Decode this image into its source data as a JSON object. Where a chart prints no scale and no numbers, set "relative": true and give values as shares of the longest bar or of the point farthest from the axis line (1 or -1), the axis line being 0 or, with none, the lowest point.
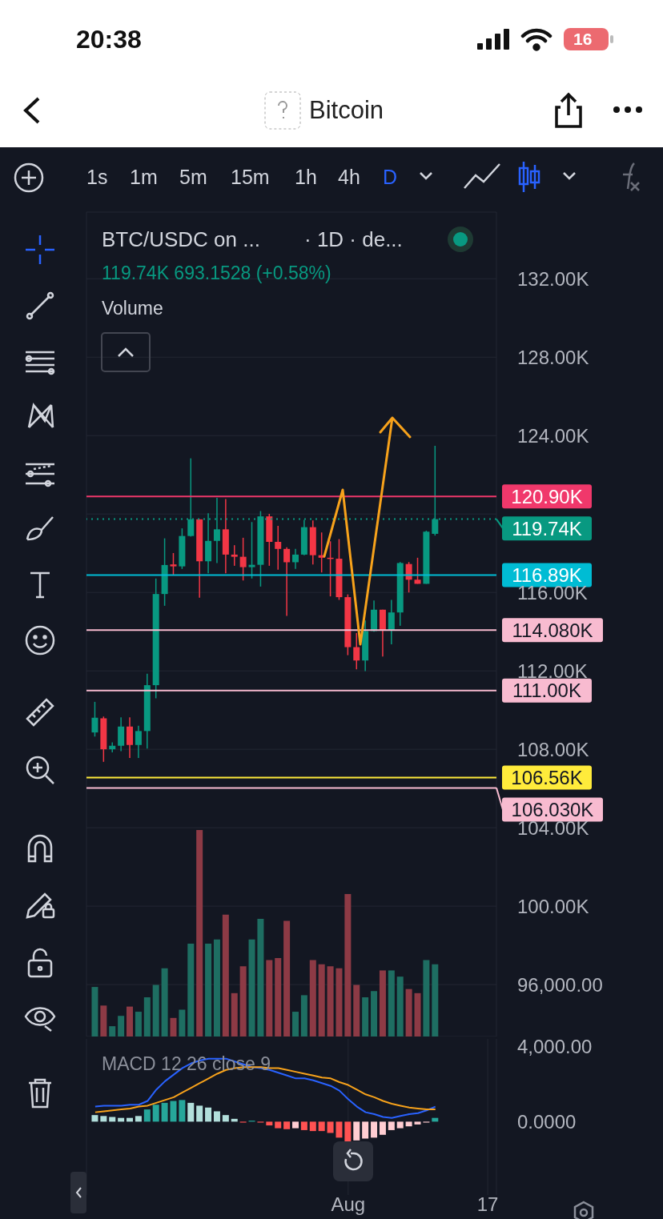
{
  "chart_data": [
    {
      "type": "candlestick",
      "title": "Bitcoin",
      "subtitle": "BTC/USDC on ...",
      "annotations": [
        "20:38",
        "16",
        "1s",
        "1m",
        "5m",
        "15m",
        "1h",
        "4h",
        "D",
        "· 1D · de...",
        "119.74K  693.1528 (+0.58%)",
        "Volume"
      ],
      "x": [
        "--07-03",
        "--07-04",
        "--07-05",
        "--07-06",
        "--07-07",
        "--07-08",
        "--07-09",
        "--07-10",
        "--07-11",
        "--07-12",
        "--07-13",
        "--07-14",
        "--07-15",
        "--07-16",
        "--07-17",
        "--07-18",
        "--07-19",
        "--07-20",
        "--07-21",
        "--07-22",
        "--07-23",
        "--07-24",
        "--07-25",
        "--07-26",
        "--07-27",
        "--07-28",
        "--07-29",
        "--07-30",
        "--07-31",
        "--08-01",
        "--08-02",
        "--08-03",
        "--08-04",
        "--08-05",
        "--08-06",
        "--08-07",
        "--08-08",
        "--08-09",
        "--08-10",
        "--08-11"
      ],
      "ohlc": [
        [
          108860,
          110420,
          108650,
          109610
        ],
        [
          109580,
          109670,
          107360,
          108000
        ],
        [
          108000,
          108350,
          107840,
          108180
        ],
        [
          108180,
          109630,
          107900,
          109160
        ],
        [
          109160,
          109630,
          107560,
          108220
        ],
        [
          108220,
          109200,
          107560,
          108930
        ],
        [
          108930,
          111850,
          108040,
          111270
        ],
        [
          111270,
          116710,
          110600,
          115920
        ],
        [
          115920,
          118760,
          115320,
          117400
        ],
        [
          117430,
          118010,
          116880,
          117330
        ],
        [
          117330,
          119270,
          117200,
          118880
        ],
        [
          118880,
          122840,
          118850,
          119730
        ],
        [
          119730,
          119730,
          115730,
          117590
        ],
        [
          117590,
          120040,
          116980,
          118630
        ],
        [
          118630,
          120830,
          117500,
          119220
        ],
        [
          119220,
          120760,
          116980,
          117930
        ],
        [
          117930,
          118410,
          117360,
          117820
        ],
        [
          117820,
          118790,
          116610,
          117290
        ],
        [
          117290,
          119590,
          116710,
          117410
        ],
        [
          117410,
          120150,
          116300,
          119880
        ],
        [
          119880,
          120010,
          117360,
          118580
        ],
        [
          118580,
          119400,
          117160,
          118220
        ],
        [
          118220,
          118300,
          114800,
          117540
        ],
        [
          117540,
          118220,
          117200,
          117930
        ],
        [
          117930,
          119700,
          117900,
          119330
        ],
        [
          119330,
          119670,
          117430,
          117900
        ],
        [
          117900,
          119060,
          117020,
          117770
        ],
        [
          117770,
          118610,
          115800,
          117720
        ],
        [
          117720,
          118720,
          115620,
          115760
        ],
        [
          115760,
          115900,
          112800,
          113210
        ],
        [
          113210,
          113930,
          112080,
          112530
        ],
        [
          112530,
          114570,
          111990,
          114030
        ],
        [
          114030,
          115590,
          114000,
          115120
        ],
        [
          115120,
          115120,
          112730,
          114050
        ],
        [
          114050,
          115620,
          113350,
          114980
        ],
        [
          114980,
          117550,
          114300,
          117500
        ],
        [
          117450,
          117550,
          116000,
          116650
        ],
        [
          116650,
          117770,
          116440,
          116440
        ],
        [
          116440,
          119150,
          116440,
          119100
        ],
        [
          118990,
          123480,
          118900,
          119740
        ]
      ],
      "colors": [
        "#089981",
        "#f23645",
        "#089981",
        "#089981",
        "#f23645",
        "#089981",
        "#089981",
        "#089981",
        "#089981",
        "#f23645",
        "#089981",
        "#089981",
        "#f23645",
        "#089981",
        "#089981",
        "#f23645",
        "#f23645",
        "#f23645",
        "#089981",
        "#089981",
        "#f23645",
        "#f23645",
        "#f23645",
        "#089981",
        "#089981",
        "#f23645",
        "#f23645",
        "#f23645",
        "#f23645",
        "#f23645",
        "#f23645",
        "#089981",
        "#089981",
        "#f23645",
        "#089981",
        "#089981",
        "#f23645",
        "#f23645",
        "#089981",
        "#089981"
      ],
      "xlim": [
        "--07-02",
        "--08-18"
      ],
      "xticks": [
        {
          "value": "--08-01",
          "label": null
        },
        {
          "value": "--08-17",
          "label": null
        }
      ],
      "ylim": [
        93350,
        135400
      ],
      "yticks": [
        {
          "value": 96000,
          "label": "96,000.00"
        },
        {
          "value": 100000,
          "label": "100.00K"
        },
        {
          "value": 104000,
          "label": "104.00K"
        },
        {
          "value": 108000,
          "label": "108.00K"
        },
        {
          "value": 112000,
          "label": "112.00K"
        },
        {
          "value": 116000,
          "label": "116.00K"
        },
        {
          "value": 120000,
          "label": null
        },
        {
          "value": 124000,
          "label": "124.00K"
        },
        {
          "value": 128000,
          "label": "128.00K"
        },
        {
          "value": 132000,
          "label": "132.00K"
        }
      ],
      "tick_labels": "y",
      "grid": true,
      "ref_lines": [
        {
          "axis": "y",
          "value": 120900,
          "label": "120.90K",
          "color": "#f0386b",
          "line_style": "solid"
        },
        {
          "axis": "y",
          "value": 119740,
          "label": "119.74K",
          "color": "#089981",
          "line_style": "dotted"
        },
        {
          "axis": "y",
          "value": 116890,
          "label": "116.89K",
          "color": "#00bcd4",
          "line_style": "solid"
        },
        {
          "axis": "y",
          "value": 114080,
          "label": "114.080K",
          "color": "#f8bbd0",
          "line_style": "solid"
        },
        {
          "axis": "y",
          "value": 111000,
          "label": "111.00K",
          "color": "#f8bbd0",
          "line_style": "solid"
        },
        {
          "axis": "y",
          "value": 106560,
          "label": "106.56K",
          "color": "#ffeb3b",
          "line_style": "solid"
        },
        {
          "axis": "y",
          "value": 106030,
          "label": "106.030K",
          "color": "#f8bbd0",
          "line_style": "solid"
        }
      ]
    },
    {
      "type": "bar",
      "relative": true,
      "tick_labels": false,
      "x": [
        "--07-03",
        "--07-04",
        "--07-05",
        "--07-06",
        "--07-07",
        "--07-08",
        "--07-09",
        "--07-10",
        "--07-11",
        "--07-12",
        "--07-13",
        "--07-14",
        "--07-15",
        "--07-16",
        "--07-17",
        "--07-18",
        "--07-19",
        "--07-20",
        "--07-21",
        "--07-22",
        "--07-23",
        "--07-24",
        "--07-25",
        "--07-26",
        "--07-27",
        "--07-28",
        "--07-29",
        "--07-30",
        "--07-31",
        "--08-01",
        "--08-02",
        "--08-03",
        "--08-04",
        "--08-05",
        "--08-06",
        "--08-07",
        "--08-08",
        "--08-09",
        "--08-10",
        "--08-11"
      ],
      "xlim": [
        "--07-02",
        "--08-18"
      ],
      "values": [
        0.24,
        0.15,
        0.05,
        0.1,
        0.145,
        0.12,
        0.19,
        0.25,
        0.33,
        0.09,
        0.13,
        0.45,
        1,
        0.45,
        0.47,
        0.59,
        0.21,
        0.34,
        0.47,
        0.57,
        0.37,
        0.38,
        0.56,
        0.12,
        0.2,
        0.37,
        0.35,
        0.34,
        0.33,
        0.69,
        0.25,
        0.19,
        0.22,
        0.32,
        0.32,
        0.29,
        0.23,
        0.21,
        0.37,
        0.35
      ],
      "colors": [
        "#1e6e62",
        "#8d3a45",
        "#1e6e62",
        "#1e6e62",
        "#8d3a45",
        "#1e6e62",
        "#1e6e62",
        "#1e6e62",
        "#1e6e62",
        "#8d3a45",
        "#1e6e62",
        "#1e6e62",
        "#8d3a45",
        "#1e6e62",
        "#1e6e62",
        "#8d3a45",
        "#8d3a45",
        "#8d3a45",
        "#1e6e62",
        "#1e6e62",
        "#8d3a45",
        "#8d3a45",
        "#8d3a45",
        "#1e6e62",
        "#1e6e62",
        "#8d3a45",
        "#8d3a45",
        "#8d3a45",
        "#8d3a45",
        "#8d3a45",
        "#8d3a45",
        "#1e6e62",
        "#1e6e62",
        "#8d3a45",
        "#1e6e62",
        "#1e6e62",
        "#8d3a45",
        "#8d3a45",
        "#1e6e62",
        "#1e6e62"
      ]
    },
    {
      "type": "bar",
      "annotations": [
        "MACD 12 26 close 9"
      ],
      "x": [
        "--07-03",
        "--07-04",
        "--07-05",
        "--07-06",
        "--07-07",
        "--07-08",
        "--07-09",
        "--07-10",
        "--07-11",
        "--07-12",
        "--07-13",
        "--07-14",
        "--07-15",
        "--07-16",
        "--07-17",
        "--07-18",
        "--07-19",
        "--07-20",
        "--07-21",
        "--07-22",
        "--07-23",
        "--07-24",
        "--07-25",
        "--07-26",
        "--07-27",
        "--07-28",
        "--07-29",
        "--07-30",
        "--07-31",
        "--08-01",
        "--08-02",
        "--08-03",
        "--08-04",
        "--08-05",
        "--08-06",
        "--08-07",
        "--08-08",
        "--08-09",
        "--08-10",
        "--08-11"
      ],
      "xlim": [
        "--07-02",
        "--08-18"
      ],
      "xticks": [
        {
          "value": "--08-01",
          "label": "Aug"
        },
        {
          "value": "--08-17",
          "label": "17"
        }
      ],
      "ylim": [
        -3900,
        4400
      ],
      "yticks": [
        {
          "value": 0,
          "label": "0.0000"
        },
        {
          "value": 4000,
          "label": "4,000.00"
        }
      ],
      "grid": "x",
      "series": [
        {
          "values": [
            350,
            300,
            250,
            200,
            200,
            300,
            650,
            900,
            1000,
            1100,
            1150,
            1000,
            850,
            750,
            550,
            350,
            150,
            -50,
            50,
            -50,
            -200,
            -350,
            -400,
            -350,
            -450,
            -500,
            -500,
            -600,
            -850,
            -1050,
            -1000,
            -900,
            -850,
            -700,
            -450,
            -350,
            -250,
            -150,
            -50,
            200
          ],
          "colors": [
            "#b2dfdb",
            "#b2dfdb",
            "#b2dfdb",
            "#b2dfdb",
            "#b2dfdb",
            "#b2dfdb",
            "#26a69a",
            "#26a69a",
            "#26a69a",
            "#26a69a",
            "#26a69a",
            "#b2dfdb",
            "#b2dfdb",
            "#b2dfdb",
            "#b2dfdb",
            "#b2dfdb",
            "#b2dfdb",
            "#ff5252",
            "#26a69a",
            "#ff5252",
            "#ff5252",
            "#ff5252",
            "#ff5252",
            "#ffcdd2",
            "#ff5252",
            "#ff5252",
            "#ff5252",
            "#ff5252",
            "#ff5252",
            "#ff5252",
            "#ffcdd2",
            "#ffcdd2",
            "#ffcdd2",
            "#ffcdd2",
            "#ffcdd2",
            "#ffcdd2",
            "#ffcdd2",
            "#ffcdd2",
            "#ffcdd2",
            "#26a69a"
          ]
        },
        {
          "type": "line",
          "color": "#2962ff",
          "values": [
            800,
            850,
            850,
            850,
            900,
            900,
            1100,
            1700,
            2150,
            2500,
            2850,
            3100,
            3250,
            3350,
            3350,
            3350,
            3200,
            3050,
            2900,
            2850,
            2750,
            2600,
            2450,
            2300,
            2300,
            2200,
            2050,
            1900,
            1650,
            1200,
            800,
            500,
            400,
            250,
            200,
            300,
            400,
            450,
            600,
            800
          ]
        },
        {
          "type": "line",
          "color": "#f7a21b",
          "values": [
            500,
            550,
            600,
            650,
            700,
            800,
            850,
            1000,
            1150,
            1300,
            1550,
            1800,
            2050,
            2300,
            2550,
            2750,
            2850,
            2900,
            2900,
            2900,
            2850,
            2850,
            2750,
            2650,
            2550,
            2450,
            2350,
            2300,
            2100,
            1950,
            1700,
            1450,
            1300,
            1100,
            950,
            850,
            750,
            700,
            650,
            650
          ]
        }
      ]
    }
  ]
}
